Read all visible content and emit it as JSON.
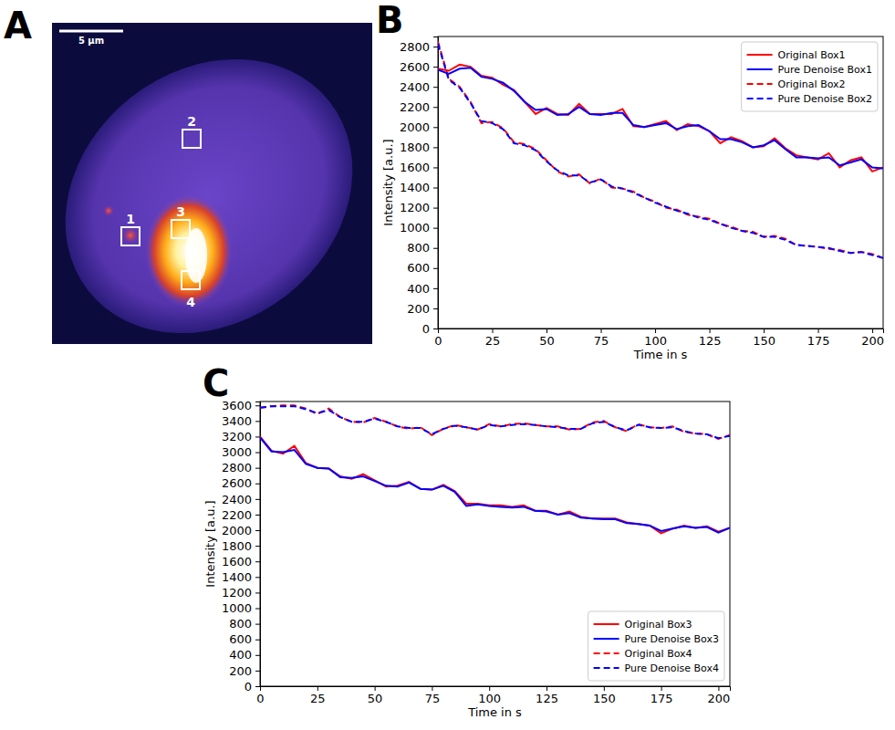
{
  "chart_data": [
    {
      "type": "image",
      "panel_label": "A",
      "scale_bar": "5 μm",
      "boxes": [
        "1",
        "2",
        "3",
        "4"
      ]
    },
    {
      "type": "line",
      "panel_label": "B",
      "x_label": "Time in s",
      "y_label": "Intensity [a.u.]",
      "x": [
        0,
        5,
        10,
        15,
        20,
        25,
        30,
        35,
        40,
        45,
        50,
        55,
        60,
        65,
        70,
        75,
        80,
        85,
        90,
        95,
        100,
        105,
        110,
        115,
        120,
        125,
        130,
        135,
        140,
        145,
        150,
        155,
        160,
        165,
        170,
        175,
        180,
        185,
        190,
        195,
        200,
        205
      ],
      "xlim": [
        0,
        205
      ],
      "xticks": [
        0,
        25,
        50,
        75,
        100,
        125,
        150,
        175,
        200
      ],
      "ylim": [
        0,
        2900
      ],
      "yticks": [
        0,
        200,
        400,
        600,
        800,
        1000,
        1200,
        1400,
        1600,
        1800,
        2000,
        2200,
        2400,
        2600,
        2800
      ],
      "legend": "upper right",
      "series": [
        {
          "name": "Original Box1",
          "color": "#ff0000",
          "line_style": "solid",
          "values": [
            2580,
            2560,
            2620,
            2600,
            2510,
            2490,
            2420,
            2370,
            2250,
            2130,
            2190,
            2130,
            2120,
            2230,
            2130,
            2130,
            2130,
            2180,
            2010,
            2000,
            2030,
            2060,
            1970,
            2030,
            2010,
            1960,
            1840,
            1900,
            1860,
            1800,
            1810,
            1890,
            1790,
            1720,
            1700,
            1680,
            1740,
            1600,
            1670,
            1700,
            1560,
            1600
          ]
        },
        {
          "name": "Pure Denoise Box1",
          "color": "#0000ff",
          "line_style": "solid",
          "values": [
            2570,
            2530,
            2580,
            2590,
            2500,
            2480,
            2440,
            2360,
            2250,
            2170,
            2180,
            2120,
            2130,
            2200,
            2130,
            2120,
            2140,
            2140,
            2020,
            2000,
            2020,
            2040,
            1980,
            2010,
            2020,
            1960,
            1880,
            1880,
            1850,
            1800,
            1820,
            1870,
            1780,
            1700,
            1700,
            1690,
            1700,
            1620,
            1650,
            1680,
            1600,
            1590
          ]
        },
        {
          "name": "Original Box2",
          "color": "#ff0000",
          "line_style": "dashed",
          "values": [
            2850,
            2480,
            2400,
            2250,
            2040,
            2050,
            1990,
            1850,
            1830,
            1780,
            1670,
            1560,
            1510,
            1530,
            1440,
            1490,
            1400,
            1390,
            1360,
            1300,
            1260,
            1200,
            1180,
            1130,
            1110,
            1090,
            1040,
            1010,
            970,
            960,
            910,
            920,
            890,
            830,
            820,
            810,
            790,
            780,
            750,
            760,
            740,
            700
          ]
        },
        {
          "name": "Pure Denoise Box2",
          "color": "#0000ff",
          "line_style": "dashed",
          "values": [
            2830,
            2470,
            2390,
            2240,
            2060,
            2040,
            1980,
            1840,
            1820,
            1770,
            1660,
            1570,
            1520,
            1520,
            1450,
            1480,
            1410,
            1390,
            1350,
            1300,
            1250,
            1210,
            1170,
            1140,
            1100,
            1080,
            1040,
            1000,
            970,
            950,
            910,
            910,
            880,
            830,
            820,
            810,
            800,
            770,
            750,
            760,
            730,
            700
          ]
        }
      ]
    },
    {
      "type": "line",
      "panel_label": "C",
      "x_label": "Time in s",
      "y_label": "Intensity [a.u.]",
      "x": [
        0,
        5,
        10,
        15,
        20,
        25,
        30,
        35,
        40,
        45,
        50,
        55,
        60,
        65,
        70,
        75,
        80,
        85,
        90,
        95,
        100,
        105,
        110,
        115,
        120,
        125,
        130,
        135,
        140,
        145,
        150,
        155,
        160,
        165,
        170,
        175,
        180,
        185,
        190,
        195,
        200,
        205
      ],
      "xlim": [
        0,
        205
      ],
      "xticks": [
        0,
        25,
        50,
        75,
        100,
        125,
        150,
        175,
        200
      ],
      "ylim": [
        0,
        3650
      ],
      "yticks": [
        0,
        200,
        400,
        600,
        800,
        1000,
        1200,
        1400,
        1600,
        1800,
        2000,
        2200,
        2400,
        2600,
        2800,
        3000,
        3200,
        3400,
        3600
      ],
      "legend": "lower right",
      "series": [
        {
          "name": "Original Box3",
          "color": "#ff0000",
          "line_style": "solid",
          "values": [
            3200,
            3020,
            2980,
            3080,
            2860,
            2800,
            2790,
            2690,
            2660,
            2720,
            2640,
            2560,
            2570,
            2620,
            2530,
            2520,
            2580,
            2500,
            2340,
            2340,
            2320,
            2320,
            2300,
            2320,
            2250,
            2250,
            2200,
            2240,
            2170,
            2150,
            2150,
            2150,
            2100,
            2080,
            2060,
            1960,
            2020,
            2060,
            2030,
            2050,
            1980,
            2030
          ]
        },
        {
          "name": "Pure Denoise Box3",
          "color": "#0000ff",
          "line_style": "solid",
          "values": [
            3190,
            3010,
            3000,
            3030,
            2850,
            2800,
            2790,
            2680,
            2670,
            2690,
            2630,
            2570,
            2560,
            2610,
            2530,
            2520,
            2570,
            2490,
            2310,
            2330,
            2310,
            2300,
            2290,
            2300,
            2250,
            2240,
            2200,
            2220,
            2160,
            2150,
            2140,
            2140,
            2090,
            2080,
            2060,
            1990,
            2020,
            2050,
            2030,
            2040,
            1970,
            2030
          ]
        },
        {
          "name": "Original Box4",
          "color": "#ff0000",
          "line_style": "dashed",
          "values": [
            3570,
            3590,
            3600,
            3600,
            3560,
            3490,
            3560,
            3450,
            3390,
            3380,
            3440,
            3390,
            3330,
            3300,
            3320,
            3220,
            3300,
            3350,
            3320,
            3290,
            3360,
            3330,
            3360,
            3370,
            3350,
            3330,
            3330,
            3290,
            3300,
            3380,
            3400,
            3320,
            3270,
            3360,
            3320,
            3310,
            3330,
            3260,
            3240,
            3230,
            3170,
            3220
          ]
        },
        {
          "name": "Pure Denoise Box4",
          "color": "#0000ff",
          "line_style": "dashed",
          "values": [
            3570,
            3590,
            3590,
            3590,
            3550,
            3500,
            3540,
            3450,
            3390,
            3390,
            3430,
            3390,
            3330,
            3310,
            3310,
            3230,
            3300,
            3340,
            3320,
            3290,
            3350,
            3330,
            3350,
            3360,
            3350,
            3330,
            3320,
            3300,
            3300,
            3370,
            3390,
            3320,
            3280,
            3350,
            3320,
            3310,
            3320,
            3270,
            3240,
            3230,
            3180,
            3210
          ]
        }
      ]
    }
  ]
}
